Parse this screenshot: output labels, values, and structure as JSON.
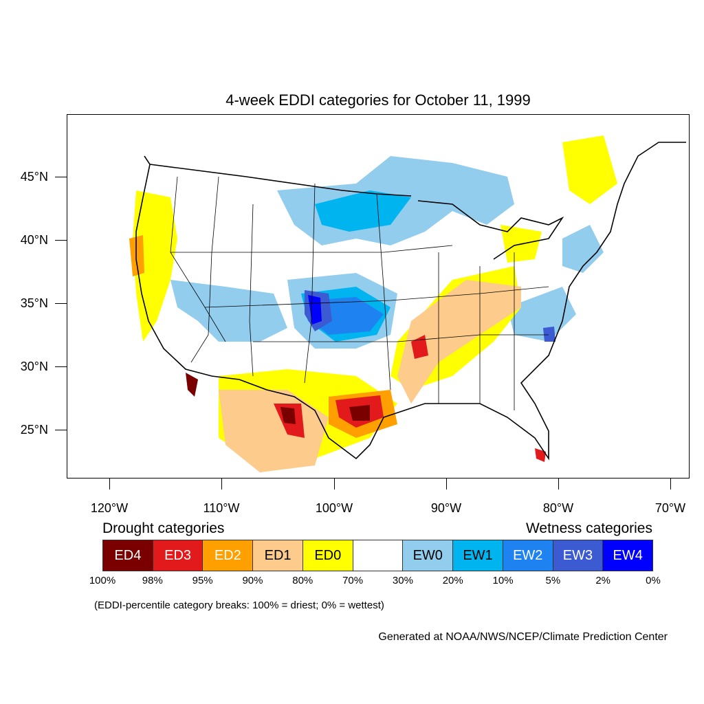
{
  "title": "4-week EDDI categories for October 11, 1999",
  "map": {
    "lat_labels": [
      "45°N",
      "40°N",
      "35°N",
      "30°N",
      "25°N"
    ],
    "lon_labels": [
      "120°W",
      "110°W",
      "100°W",
      "90°W",
      "80°W",
      "70°W"
    ]
  },
  "legend": {
    "drought_heading": "Drought categories",
    "wetness_heading": "Wetness categories",
    "categories": [
      {
        "label": "ED4",
        "color": "#7a0000",
        "text_color": "#ffffff"
      },
      {
        "label": "ED3",
        "color": "#e31a1c",
        "text_color": "#ffffff"
      },
      {
        "label": "ED2",
        "color": "#ff9f00",
        "text_color": "#ffffff"
      },
      {
        "label": "ED1",
        "color": "#fdcb8c",
        "text_color": "#000000"
      },
      {
        "label": "ED0",
        "color": "#ffff00",
        "text_color": "#000000"
      },
      {
        "label": "",
        "color": "#ffffff",
        "text_color": "#000000"
      },
      {
        "label": "EW0",
        "color": "#92cdee",
        "text_color": "#000000"
      },
      {
        "label": "EW1",
        "color": "#00b4f0",
        "text_color": "#000000"
      },
      {
        "label": "EW2",
        "color": "#1e82f0",
        "text_color": "#ffffff"
      },
      {
        "label": "EW3",
        "color": "#3c5ad2",
        "text_color": "#ffffff"
      },
      {
        "label": "EW4",
        "color": "#0000ff",
        "text_color": "#ffffff"
      }
    ],
    "breaks": [
      "100%",
      "98%",
      "95%",
      "90%",
      "80%",
      "70%",
      "30%",
      "20%",
      "10%",
      "5%",
      "2%",
      "0%"
    ]
  },
  "note": "(EDDI-percentile category breaks: 100% = driest; 0% = wettest)",
  "credit": "Generated at NOAA/NWS/NCEP/Climate Prediction Center"
}
